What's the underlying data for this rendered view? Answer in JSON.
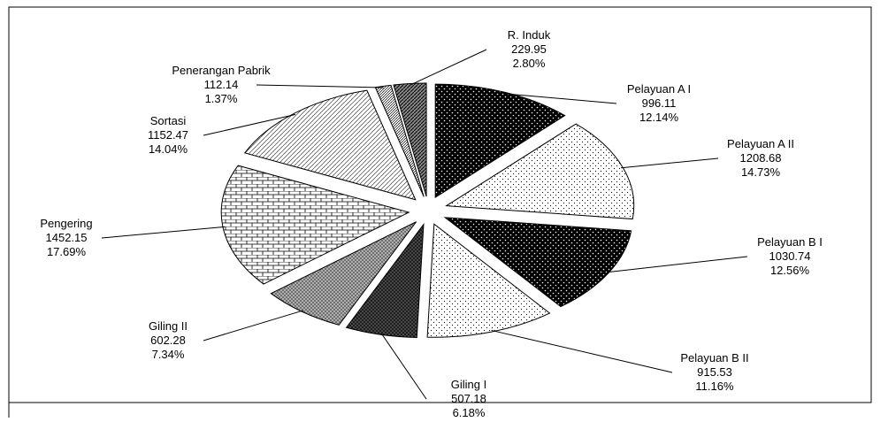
{
  "chart_data": {
    "type": "pie",
    "categories": [
      "Pelayuan A I",
      "Pelayuan A II",
      "Pelayuan B I",
      "Pelayuan B II",
      "Giling I",
      "Giling II",
      "Pengering",
      "Sortasi",
      "Penerangan Pabrik",
      "R. Induk"
    ],
    "values": [
      996.11,
      1208.68,
      1030.74,
      915.53,
      507.18,
      602.28,
      1452.15,
      1152.47,
      112.14,
      229.95
    ],
    "percent_labels": [
      "12.14%",
      "14.73%",
      "12.56%",
      "11.16%",
      "6.18%",
      "7.34%",
      "17.69%",
      "14.04%",
      "1.37%",
      "2.80%"
    ],
    "patterns": [
      "dots-dark",
      "dots-light",
      "dots-dark",
      "dots-light",
      "cross-dark",
      "cross-mid",
      "brick",
      "diag-light",
      "diag-fine",
      "diag-dark"
    ],
    "exploded": true
  }
}
